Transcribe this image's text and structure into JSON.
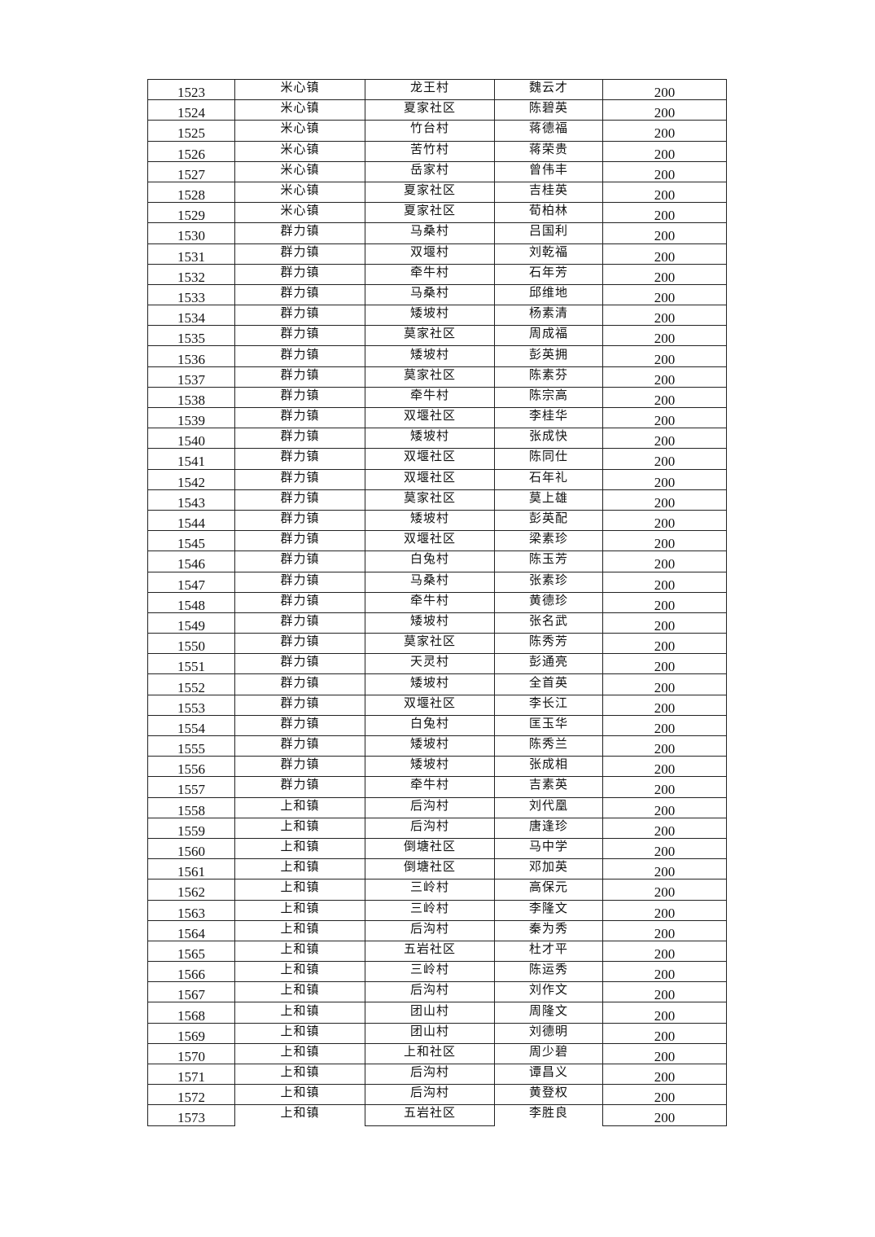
{
  "rows": [
    [
      "1523",
      "米心镇",
      "龙王村",
      "魏云才",
      "200"
    ],
    [
      "1524",
      "米心镇",
      "夏家社区",
      "陈碧英",
      "200"
    ],
    [
      "1525",
      "米心镇",
      "竹台村",
      "蒋德福",
      "200"
    ],
    [
      "1526",
      "米心镇",
      "苦竹村",
      "蒋荣贵",
      "200"
    ],
    [
      "1527",
      "米心镇",
      "岳家村",
      "曾伟丰",
      "200"
    ],
    [
      "1528",
      "米心镇",
      "夏家社区",
      "吉桂英",
      "200"
    ],
    [
      "1529",
      "米心镇",
      "夏家社区",
      "荀柏林",
      "200"
    ],
    [
      "1530",
      "群力镇",
      "马桑村",
      "吕国利",
      "200"
    ],
    [
      "1531",
      "群力镇",
      "双堰村",
      "刘乾福",
      "200"
    ],
    [
      "1532",
      "群力镇",
      "牵牛村",
      "石年芳",
      "200"
    ],
    [
      "1533",
      "群力镇",
      "马桑村",
      "邱维地",
      "200"
    ],
    [
      "1534",
      "群力镇",
      "矮坡村",
      "杨素清",
      "200"
    ],
    [
      "1535",
      "群力镇",
      "莫家社区",
      "周成福",
      "200"
    ],
    [
      "1536",
      "群力镇",
      "矮坡村",
      "彭英拥",
      "200"
    ],
    [
      "1537",
      "群力镇",
      "莫家社区",
      "陈素芬",
      "200"
    ],
    [
      "1538",
      "群力镇",
      "牵牛村",
      "陈宗高",
      "200"
    ],
    [
      "1539",
      "群力镇",
      "双堰社区",
      "李桂华",
      "200"
    ],
    [
      "1540",
      "群力镇",
      "矮坡村",
      "张成快",
      "200"
    ],
    [
      "1541",
      "群力镇",
      "双堰社区",
      "陈同仕",
      "200"
    ],
    [
      "1542",
      "群力镇",
      "双堰社区",
      "石年礼",
      "200"
    ],
    [
      "1543",
      "群力镇",
      "莫家社区",
      "莫上雄",
      "200"
    ],
    [
      "1544",
      "群力镇",
      "矮坡村",
      "彭英配",
      "200"
    ],
    [
      "1545",
      "群力镇",
      "双堰社区",
      "梁素珍",
      "200"
    ],
    [
      "1546",
      "群力镇",
      "白兔村",
      "陈玉芳",
      "200"
    ],
    [
      "1547",
      "群力镇",
      "马桑村",
      "张素珍",
      "200"
    ],
    [
      "1548",
      "群力镇",
      "牵牛村",
      "黄德珍",
      "200"
    ],
    [
      "1549",
      "群力镇",
      "矮坡村",
      "张名武",
      "200"
    ],
    [
      "1550",
      "群力镇",
      "莫家社区",
      "陈秀芳",
      "200"
    ],
    [
      "1551",
      "群力镇",
      "天灵村",
      "彭通亮",
      "200"
    ],
    [
      "1552",
      "群力镇",
      "矮坡村",
      "全首英",
      "200"
    ],
    [
      "1553",
      "群力镇",
      "双堰社区",
      "李长江",
      "200"
    ],
    [
      "1554",
      "群力镇",
      "白兔村",
      "匡玉华",
      "200"
    ],
    [
      "1555",
      "群力镇",
      "矮坡村",
      "陈秀兰",
      "200"
    ],
    [
      "1556",
      "群力镇",
      "矮坡村",
      "张成相",
      "200"
    ],
    [
      "1557",
      "群力镇",
      "牵牛村",
      "吉素英",
      "200"
    ],
    [
      "1558",
      "上和镇",
      "后沟村",
      "刘代凰",
      "200"
    ],
    [
      "1559",
      "上和镇",
      "后沟村",
      "唐逢珍",
      "200"
    ],
    [
      "1560",
      "上和镇",
      "倒塘社区",
      "马中学",
      "200"
    ],
    [
      "1561",
      "上和镇",
      "倒塘社区",
      "邓加英",
      "200"
    ],
    [
      "1562",
      "上和镇",
      "三岭村",
      "高保元",
      "200"
    ],
    [
      "1563",
      "上和镇",
      "三岭村",
      "李隆文",
      "200"
    ],
    [
      "1564",
      "上和镇",
      "后沟村",
      "秦为秀",
      "200"
    ],
    [
      "1565",
      "上和镇",
      "五岩社区",
      "杜才平",
      "200"
    ],
    [
      "1566",
      "上和镇",
      "三岭村",
      "陈运秀",
      "200"
    ],
    [
      "1567",
      "上和镇",
      "后沟村",
      "刘作文",
      "200"
    ],
    [
      "1568",
      "上和镇",
      "团山村",
      "周隆文",
      "200"
    ],
    [
      "1569",
      "上和镇",
      "团山村",
      "刘德明",
      "200"
    ],
    [
      "1570",
      "上和镇",
      "上和社区",
      "周少碧",
      "200"
    ],
    [
      "1571",
      "上和镇",
      "后沟村",
      "谭昌义",
      "200"
    ],
    [
      "1572",
      "上和镇",
      "后沟村",
      "黄登权",
      "200"
    ],
    [
      "1573",
      "上和镇",
      "五岩社区",
      "李胜良",
      "200"
    ]
  ]
}
